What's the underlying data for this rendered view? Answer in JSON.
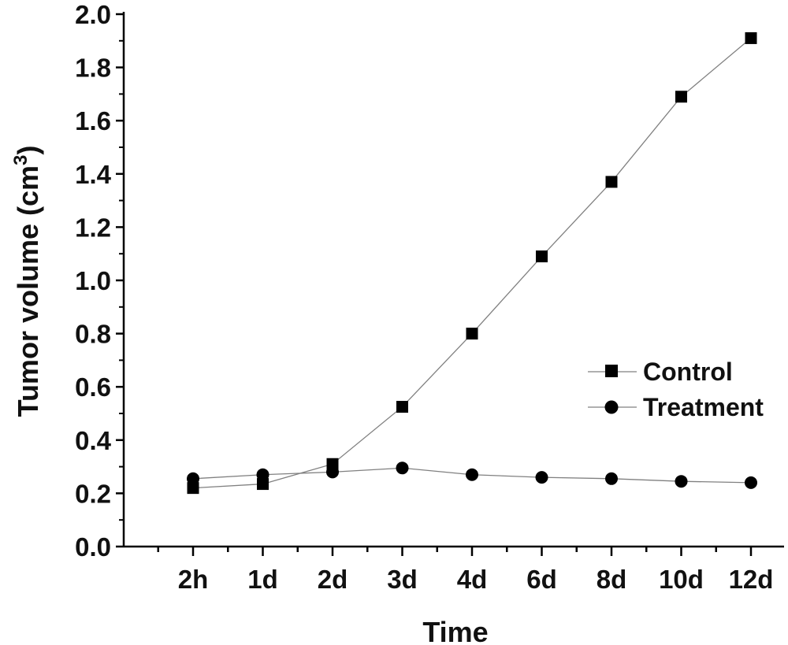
{
  "chart_data": {
    "type": "line",
    "title": "",
    "xlabel": "Time",
    "ylabel": "Tumor volume (cm",
    "ylabel_sup": "3",
    "ylabel_close": ")",
    "categories": [
      "2h",
      "1d",
      "2d",
      "3d",
      "4d",
      "6d",
      "8d",
      "10d",
      "12d"
    ],
    "ylim": [
      0.0,
      2.0
    ],
    "yticks": [
      "0.0",
      "0.2",
      "0.4",
      "0.6",
      "0.8",
      "1.0",
      "1.2",
      "1.4",
      "1.6",
      "1.8",
      "2.0"
    ],
    "grid": false,
    "legend_position": "right",
    "series": [
      {
        "name": "Control",
        "marker": "square",
        "values": [
          0.22,
          0.235,
          0.31,
          0.525,
          0.8,
          1.09,
          1.37,
          1.69,
          1.91
        ]
      },
      {
        "name": "Treatment",
        "marker": "circle",
        "values": [
          0.255,
          0.27,
          0.28,
          0.295,
          0.27,
          0.26,
          0.255,
          0.245,
          0.24
        ]
      }
    ],
    "colors": {
      "marker": "#000000",
      "line": "#808080",
      "axis": "#000000"
    }
  }
}
